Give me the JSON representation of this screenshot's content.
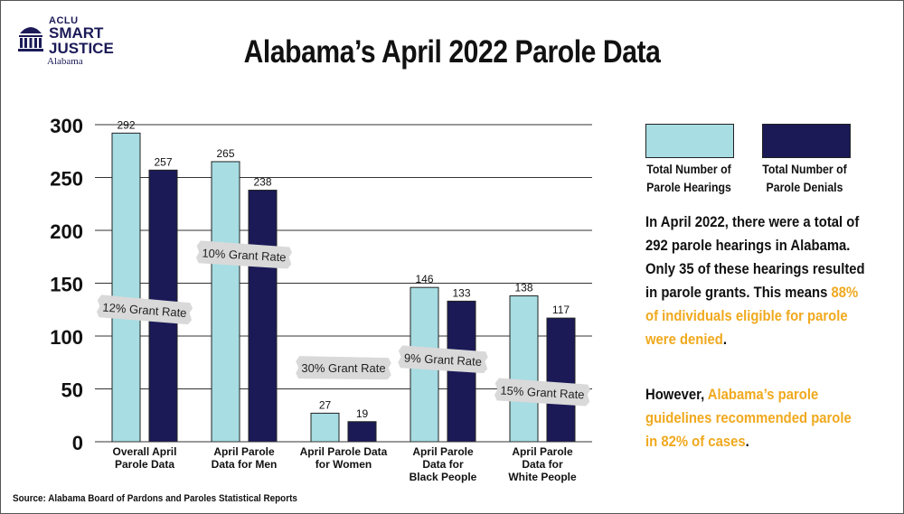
{
  "logo": {
    "aclu": "ACLU",
    "line1": "SMART",
    "line2": "JUSTICE",
    "state": "Alabama"
  },
  "colors": {
    "hearings": "#a7dde3",
    "denials": "#1b1a57",
    "highlight": "#f0a91e",
    "annotation": "#d9d9d9"
  },
  "chart_data": {
    "type": "bar",
    "title": "Alabama’s April 2022 Parole Data",
    "ylim": [
      0,
      300
    ],
    "yticks": [
      0,
      50,
      100,
      150,
      200,
      250,
      300
    ],
    "categories": [
      [
        "Overall April",
        "Parole Data"
      ],
      [
        "April Parole",
        "Data for Men"
      ],
      [
        "April Parole Data",
        "for Women"
      ],
      [
        "April Parole",
        "Data for",
        "Black People"
      ],
      [
        "April Parole",
        "Data for",
        "White People"
      ]
    ],
    "series": [
      {
        "name": "Total Number of Parole Hearings",
        "values": [
          292,
          265,
          27,
          146,
          138
        ]
      },
      {
        "name": "Total Number of Parole Denials",
        "values": [
          257,
          238,
          19,
          133,
          117
        ]
      }
    ],
    "annotations": [
      {
        "text": "12% Grant Rate",
        "category": 0,
        "y": 125
      },
      {
        "text": "10% Grant Rate",
        "category": 1,
        "y": 177
      },
      {
        "text": "30% Grant Rate",
        "category": 2,
        "y": 70
      },
      {
        "text": "9% Grant Rate",
        "category": 3,
        "y": 78
      },
      {
        "text": "15% Grant Rate",
        "category": 4,
        "y": 47
      }
    ]
  },
  "legend": {
    "hearings": [
      "Total Number of",
      "Parole Hearings"
    ],
    "denials": [
      "Total Number of",
      "Parole Denials"
    ]
  },
  "paragraph1": {
    "text": "In April 2022, there were a total of 292 parole hearings in Alabama. Only 35 of these hearings resulted in parole grants. This means ",
    "highlight": "88% of individuals eligible for parole were denied",
    "end": "."
  },
  "paragraph2": {
    "text": "However, ",
    "highlight": "Alabama’s parole guidelines recommended parole in 82% of cases",
    "end": "."
  },
  "source": "Source: Alabama Board of Pardons and Paroles Statistical Reports"
}
